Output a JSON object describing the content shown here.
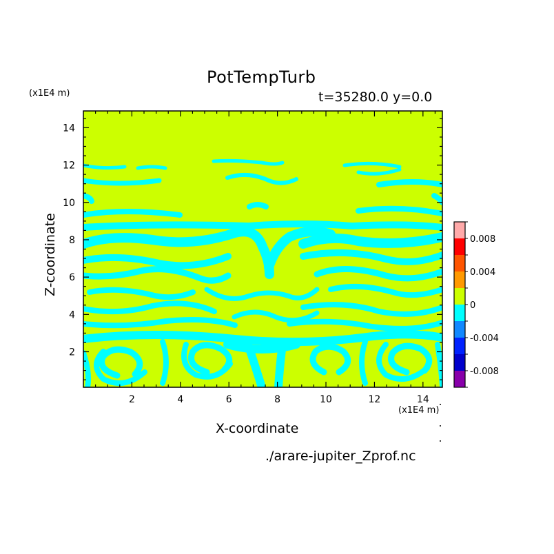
{
  "chart_data": {
    "type": "heatmap",
    "title": "PotTempTurb",
    "subtitle": "t=35280.0 y=0.0",
    "xlabel": "X-coordinate",
    "ylabel": "Z-coordinate",
    "x_unit": "(x1E4 m)",
    "y_unit": "(x1E4 m)",
    "xlim": [
      0.0,
      14.8
    ],
    "ylim": [
      0.1,
      14.9
    ],
    "xticks": [
      2,
      4,
      6,
      8,
      10,
      12,
      14
    ],
    "yticks": [
      2,
      4,
      6,
      8,
      10,
      12,
      14
    ],
    "colorbar": {
      "levels": [
        -0.01,
        -0.008,
        -0.006,
        -0.004,
        -0.002,
        0,
        0.002,
        0.004,
        0.006,
        0.008,
        0.01
      ],
      "colors": [
        "#8800aa",
        "#0000cc",
        "#0022ff",
        "#1188ff",
        "#00ffff",
        "#ccff00",
        "#ff9900",
        "#ff5500",
        "#ff0000",
        "#ffaaaa"
      ],
      "tick_labels": [
        "0.008",
        "0.004",
        "0",
        "-0.004",
        "-0.008"
      ],
      "tick_values": [
        0.008,
        0.004,
        0,
        -0.004,
        -0.008
      ]
    },
    "field_summary": "values lie in the -0.002 to 0 (cyan) and 0 to 0.002 (yellow-green) bands; cyan turbulent streaks and vortices fill z < 9, upper region z > 9 mostly 0 to 0.002",
    "source_file": "./arare-jupiter_Zprof.nc"
  }
}
